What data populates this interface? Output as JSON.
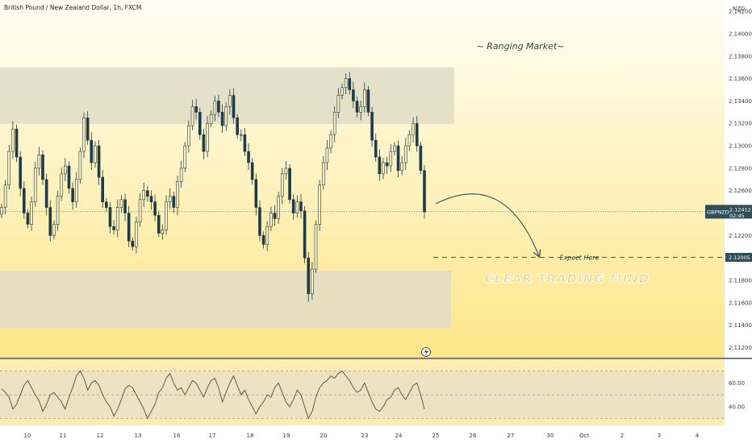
{
  "header": {
    "symbol_title": "British Pound / New Zealand Dollar, 1h, FXCM",
    "currency": "NZD"
  },
  "annotations": {
    "title": "~ Ranging Market~",
    "expect_label": "Expect Here",
    "watermark": "CLEAR TRADING MIND"
  },
  "badges": {
    "symbol": "GBPNZD",
    "price": "2.12412",
    "countdown": "02:45",
    "target": "2.12005"
  },
  "colors": {
    "background_top": "#fffef5",
    "background_bottom": "#fde68a",
    "zone": "#e0dcc6",
    "candle": "#1f3b44",
    "rsi_band": "#ece3c3",
    "rsi_line": "#5b4a3a",
    "badge": "#2f4f57",
    "target_line": "#3c6364"
  },
  "chart_data": [
    {
      "type": "candlestick",
      "y_axis": {
        "ticks": [
          "2.14200",
          "2.14000",
          "2.13800",
          "2.13600",
          "2.13400",
          "2.13200",
          "2.13000",
          "2.12800",
          "2.12600",
          "2.12400",
          "2.12200",
          "2.12000",
          "2.11800",
          "2.11600",
          "2.11400",
          "2.11200"
        ],
        "range": [
          2.1111,
          2.1428
        ]
      },
      "x_axis": {
        "ticks": [
          "10",
          "11",
          "12",
          "13",
          "16",
          "17",
          "18",
          "19",
          "20",
          "23",
          "24",
          "25",
          "26",
          "27",
          "30",
          "Oct",
          "2",
          "3",
          "4"
        ]
      },
      "zones": [
        {
          "name": "resistance",
          "from": 2.13195,
          "to": 2.137
        },
        {
          "name": "support",
          "from": 2.11375,
          "to": 2.11885
        }
      ],
      "current_price": 2.12412,
      "target_price": 2.12005,
      "closes": [
        2.1245,
        2.1265,
        2.1295,
        2.1315,
        2.129,
        2.1262,
        2.124,
        2.123,
        2.125,
        2.128,
        2.1292,
        2.127,
        2.1245,
        2.122,
        2.123,
        2.1255,
        2.1275,
        2.1282,
        2.1262,
        2.125,
        2.127,
        2.1295,
        2.1325,
        2.1305,
        2.1285,
        2.13,
        2.1272,
        2.125,
        2.1245,
        2.1228,
        2.1225,
        2.1245,
        2.1252,
        2.124,
        2.1215,
        2.121,
        2.1232,
        2.1252,
        2.126,
        2.1255,
        2.125,
        2.1238,
        2.1222,
        2.1225,
        2.125,
        2.1255,
        2.1245,
        2.1268,
        2.128,
        2.13,
        2.1318,
        2.1335,
        2.133,
        2.131,
        2.1295,
        2.132,
        2.1328,
        2.134,
        2.133,
        2.1318,
        2.1335,
        2.1345,
        2.1325,
        2.131,
        2.131,
        2.1295,
        2.1285,
        2.127,
        2.1245,
        2.122,
        2.1212,
        2.1228,
        2.124,
        2.1235,
        2.1255,
        2.1275,
        2.128,
        2.1252,
        2.124,
        2.125,
        2.1242,
        2.12,
        2.1168,
        2.119,
        2.123,
        2.1265,
        2.1285,
        2.1298,
        2.131,
        2.133,
        2.1345,
        2.1352,
        2.136,
        2.135,
        2.134,
        2.133,
        2.1335,
        2.135,
        2.133,
        2.1305,
        2.129,
        2.1275,
        2.1285,
        2.1282,
        2.1295,
        2.13,
        2.1278,
        2.1285,
        2.13,
        2.131,
        2.132,
        2.13,
        2.1278,
        2.1241
      ],
      "series": [
        {
          "type": "line",
          "y_axis": {
            "ticks": [
              "60.00",
              "40.00"
            ],
            "range": [
              25,
              80
            ]
          },
          "values": [
            55,
            52,
            48,
            38,
            42,
            50,
            58,
            62,
            56,
            50,
            45,
            36,
            42,
            50,
            52,
            48,
            44,
            38,
            48,
            56,
            66,
            70,
            64,
            54,
            60,
            62,
            58,
            50,
            44,
            40,
            32,
            38,
            46,
            55,
            58,
            56,
            50,
            44,
            38,
            30,
            36,
            42,
            52,
            56,
            64,
            68,
            60,
            54,
            56,
            50,
            56,
            62,
            60,
            54,
            48,
            56,
            62,
            64,
            56,
            44,
            52,
            60,
            66,
            58,
            50,
            54,
            46,
            40,
            34,
            40,
            44,
            50,
            48,
            56,
            60,
            52,
            44,
            40,
            46,
            54,
            50,
            40,
            30,
            36,
            48,
            56,
            60,
            62,
            66,
            64,
            68,
            70,
            66,
            62,
            56,
            52,
            54,
            60,
            52,
            44,
            38,
            36,
            40,
            46,
            48,
            54,
            56,
            50,
            46,
            52,
            58,
            60,
            50,
            38
          ]
        }
      ]
    }
  ]
}
